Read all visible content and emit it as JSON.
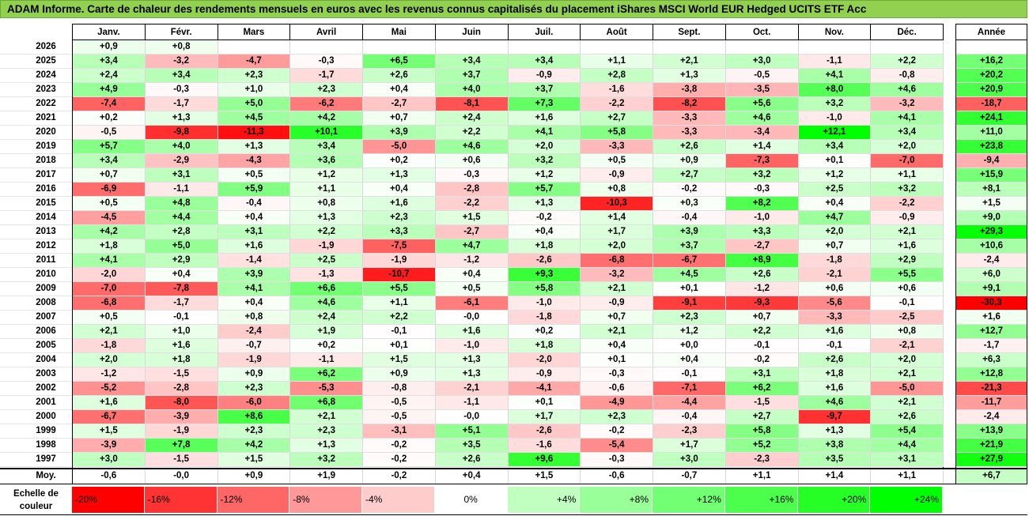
{
  "title": "ADAM Informe. Carte de chaleur des rendements mensuels en euros avec les revenus connus capitalisés du placement iShares MSCI World EUR Hedged UCITS ETF Acc",
  "chart_data": {
    "type": "heatmap",
    "columns": [
      "Janv.",
      "Févr.",
      "Mars",
      "Avril",
      "Mai",
      "Juin",
      "Juil.",
      "Août",
      "Sept.",
      "Oct.",
      "Nov.",
      "Déc."
    ],
    "year_header": "Année",
    "rows": [
      {
        "year": "2026",
        "months": [
          "+0,9",
          "+0,8",
          "",
          "",
          "",
          "",
          "",
          "",
          "",
          "",
          "",
          ""
        ],
        "annual": ""
      },
      {
        "year": "2025",
        "months": [
          "+3,4",
          "-3,2",
          "-4,7",
          "-0,3",
          "+6,5",
          "+3,4",
          "+3,4",
          "+1,1",
          "+2,1",
          "+3,0",
          "-1,1",
          "+2,2"
        ],
        "annual": "+16,2"
      },
      {
        "year": "2024",
        "months": [
          "+2,4",
          "+3,4",
          "+2,3",
          "-1,7",
          "+2,6",
          "+3,7",
          "-0,9",
          "+2,8",
          "+1,3",
          "-0,5",
          "+4,1",
          "-0,8"
        ],
        "annual": "+20,2"
      },
      {
        "year": "2023",
        "months": [
          "+4,9",
          "-0,3",
          "+1,0",
          "+2,3",
          "+0,4",
          "+4,0",
          "+3,7",
          "-1,6",
          "-3,8",
          "-3,5",
          "+8,0",
          "+4,6"
        ],
        "annual": "+20,9"
      },
      {
        "year": "2022",
        "months": [
          "-7,4",
          "-1,7",
          "+5,0",
          "-6,2",
          "-2,7",
          "-8,1",
          "+7,3",
          "-2,2",
          "-8,2",
          "+5,6",
          "+3,2",
          "-3,2"
        ],
        "annual": "-18,7"
      },
      {
        "year": "2021",
        "months": [
          "+0,2",
          "+1,3",
          "+4,5",
          "+4,2",
          "+0,7",
          "+2,4",
          "+1,6",
          "+2,7",
          "-3,3",
          "+4,6",
          "-1,0",
          "+4,1"
        ],
        "annual": "+24,1"
      },
      {
        "year": "2020",
        "months": [
          "-0,5",
          "-9,8",
          "-11,3",
          "+10,1",
          "+3,9",
          "+2,2",
          "+4,1",
          "+5,8",
          "-3,3",
          "-3,4",
          "+12,1",
          "+3,4"
        ],
        "annual": "+11,0"
      },
      {
        "year": "2019",
        "months": [
          "+5,7",
          "+4,0",
          "+1,3",
          "+3,4",
          "-5,0",
          "+4,6",
          "+2,0",
          "-3,3",
          "+2,6",
          "+1,4",
          "+3,4",
          "+2,0"
        ],
        "annual": "+23,8"
      },
      {
        "year": "2018",
        "months": [
          "+3,4",
          "-2,9",
          "-4,3",
          "+3,6",
          "+0,2",
          "+0,6",
          "+3,2",
          "+0,5",
          "+0,9",
          "-7,3",
          "+0,1",
          "-7,0"
        ],
        "annual": "-9,4"
      },
      {
        "year": "2017",
        "months": [
          "+0,7",
          "+3,1",
          "+0,5",
          "+1,2",
          "+1,3",
          "-0,3",
          "+1,2",
          "-0,9",
          "+2,7",
          "+3,2",
          "+1,2",
          "+1,1"
        ],
        "annual": "+15,9"
      },
      {
        "year": "2016",
        "months": [
          "-6,9",
          "-1,1",
          "+5,9",
          "+1,1",
          "+0,4",
          "-2,8",
          "+5,7",
          "+0,8",
          "-0,2",
          "-0,3",
          "+2,5",
          "+3,2"
        ],
        "annual": "+8,1"
      },
      {
        "year": "2015",
        "months": [
          "+0,5",
          "+4,8",
          "-0,4",
          "+0,8",
          "+1,6",
          "-2,2",
          "+1,3",
          "-10,3",
          "+0,3",
          "+8,2",
          "+0,4",
          "-2,2"
        ],
        "annual": "+1,5"
      },
      {
        "year": "2014",
        "months": [
          "-4,5",
          "+4,4",
          "+0,4",
          "+1,3",
          "+2,3",
          "+1,5",
          "-0,2",
          "+1,4",
          "-0,4",
          "-1,0",
          "+4,7",
          "-0,9"
        ],
        "annual": "+9,0"
      },
      {
        "year": "2013",
        "months": [
          "+4,2",
          "+2,8",
          "+3,1",
          "+2,2",
          "+3,3",
          "-2,7",
          "+0,4",
          "+1,7",
          "+3,9",
          "+3,3",
          "+2,0",
          "+2,1"
        ],
        "annual": "+29,3"
      },
      {
        "year": "2012",
        "months": [
          "+1,8",
          "+5,0",
          "+1,6",
          "-1,9",
          "-7,5",
          "+4,7",
          "+1,8",
          "+2,0",
          "+3,7",
          "-2,7",
          "+0,7",
          "+1,6"
        ],
        "annual": "+10,6"
      },
      {
        "year": "2011",
        "months": [
          "+4,1",
          "+2,9",
          "-1,4",
          "+2,5",
          "-1,9",
          "-1,2",
          "-2,6",
          "-6,8",
          "-6,7",
          "+8,9",
          "-1,8",
          "+2,9"
        ],
        "annual": "-2,4"
      },
      {
        "year": "2010",
        "months": [
          "-2,0",
          "+0,4",
          "+3,9",
          "-1,3",
          "-10,7",
          "+0,4",
          "+9,3",
          "-3,2",
          "+4,5",
          "+2,6",
          "-2,1",
          "+5,5"
        ],
        "annual": "+6,0"
      },
      {
        "year": "2009",
        "months": [
          "-7,0",
          "-7,8",
          "+4,1",
          "+6,6",
          "+5,5",
          "+0,5",
          "+5,8",
          "+2,1",
          "+0,1",
          "-1,2",
          "+0,6",
          "+0,6"
        ],
        "annual": "+9,1"
      },
      {
        "year": "2008",
        "months": [
          "-6,8",
          "-1,7",
          "+0,4",
          "+4,6",
          "+1,1",
          "-6,1",
          "-1,0",
          "-0,9",
          "-9,1",
          "-9,3",
          "-5,6",
          "-0,1"
        ],
        "annual": "-30,3"
      },
      {
        "year": "2007",
        "months": [
          "+0,5",
          "-0,1",
          "+0,8",
          "+2,4",
          "+2,2",
          "-0,0",
          "-1,8",
          "+0,7",
          "+2,3",
          "+0,7",
          "-3,3",
          "-2,5"
        ],
        "annual": "+1,6"
      },
      {
        "year": "2006",
        "months": [
          "+2,1",
          "+1,0",
          "-2,4",
          "+1,9",
          "-0,1",
          "+1,6",
          "+0,2",
          "+2,1",
          "+1,2",
          "+2,2",
          "+1,6",
          "+0,8"
        ],
        "annual": "+12,7"
      },
      {
        "year": "2005",
        "months": [
          "-1,8",
          "+1,6",
          "-0,7",
          "+0,2",
          "+0,1",
          "-1,0",
          "+1,8",
          "+0,4",
          "+0,0",
          "-0,1",
          "-0,1",
          "-2,1"
        ],
        "annual": "-1,7"
      },
      {
        "year": "2004",
        "months": [
          "+2,0",
          "+1,8",
          "-1,9",
          "-1,1",
          "+1,5",
          "+1,3",
          "-2,0",
          "+0,1",
          "+0,4",
          "-0,2",
          "+2,6",
          "+2,0"
        ],
        "annual": "+6,3"
      },
      {
        "year": "2003",
        "months": [
          "-1,2",
          "-1,5",
          "+0,9",
          "+6,2",
          "+0,9",
          "+1,3",
          "-0,9",
          "-0,3",
          "-0,1",
          "+3,1",
          "+1,8",
          "+2,1"
        ],
        "annual": "+12,8"
      },
      {
        "year": "2002",
        "months": [
          "-5,2",
          "-2,8",
          "+2,3",
          "-5,3",
          "-0,8",
          "-2,1",
          "-4,1",
          "-0,6",
          "-7,1",
          "+6,2",
          "+1,6",
          "-5,0"
        ],
        "annual": "-21,3"
      },
      {
        "year": "2001",
        "months": [
          "+1,6",
          "-8,0",
          "-6,0",
          "+6,8",
          "-0,5",
          "-1,1",
          "+0,1",
          "-4,9",
          "-4,4",
          "-1,5",
          "+4,6",
          "+2,1"
        ],
        "annual": "-11,7"
      },
      {
        "year": "2000",
        "months": [
          "-6,7",
          "-3,9",
          "+8,6",
          "+2,1",
          "-0,5",
          "-0,0",
          "+1,7",
          "+2,3",
          "-0,4",
          "+2,7",
          "-9,7",
          "+2,6"
        ],
        "annual": "-2,4"
      },
      {
        "year": "1999",
        "months": [
          "+1,5",
          "-1,9",
          "+2,3",
          "+2,3",
          "-3,1",
          "+5,1",
          "-2,6",
          "-0,2",
          "-2,3",
          "+5,8",
          "+1,3",
          "+5,4"
        ],
        "annual": "+13,9"
      },
      {
        "year": "1998",
        "months": [
          "-3,9",
          "+7,8",
          "+4,2",
          "+1,3",
          "-0,2",
          "+3,5",
          "-1,6",
          "-5,4",
          "+1,7",
          "+5,2",
          "+3,8",
          "+4,4"
        ],
        "annual": "+21,9"
      },
      {
        "year": "1997",
        "months": [
          "+3,0",
          "-1,5",
          "+1,5",
          "+3,2",
          "-0,2",
          "+2,6",
          "+9,6",
          "-0,3",
          "+3,0",
          "-2,3",
          "+3,5",
          "+3,1"
        ],
        "annual": "+27,9"
      }
    ],
    "average": {
      "label": "Moy.",
      "months": [
        "-0,6",
        "-0,0",
        "+0,9",
        "+1,9",
        "-0,2",
        "+0,4",
        "+1,5",
        "-0,6",
        "-0,7",
        "+1,1",
        "+1,4",
        "+1,1"
      ],
      "annual": "+6,7"
    },
    "scale": {
      "label_line1": "Echelle de",
      "label_line2": "couleur",
      "steps": [
        {
          "label": "-20%",
          "value": -20
        },
        {
          "label": "-16%",
          "value": -16
        },
        {
          "label": "-12%",
          "value": -12
        },
        {
          "label": "-8%",
          "value": -8
        },
        {
          "label": "-4%",
          "value": -4
        },
        {
          "label": "0%",
          "value": 0
        },
        {
          "label": "+4%",
          "value": 4
        },
        {
          "label": "+8%",
          "value": 8
        },
        {
          "label": "+12%",
          "value": 12
        },
        {
          "label": "+16%",
          "value": 16
        },
        {
          "label": "+20%",
          "value": 20
        },
        {
          "label": "+24%",
          "value": 24
        }
      ]
    },
    "colors": {
      "negative_max": "#ff0000",
      "neutral": "#ffffff",
      "positive_max": "#00ff00",
      "title_bg": "#92d050"
    }
  }
}
